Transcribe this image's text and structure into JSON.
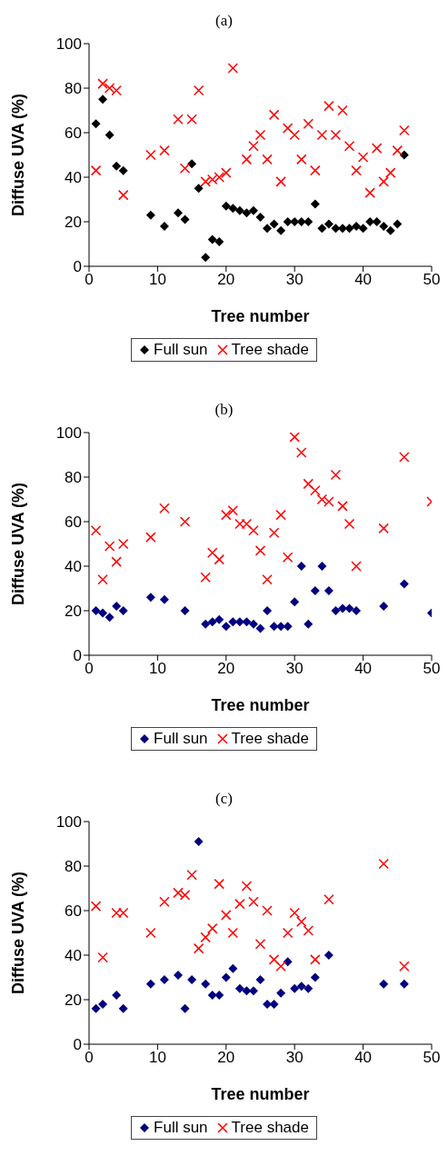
{
  "chart_data": [
    {
      "type": "scatter",
      "title": "(a)",
      "xlabel": "Tree number",
      "ylabel": "Diffuse UVA (%)",
      "xlim": [
        0,
        50
      ],
      "xticks": [
        0,
        10,
        20,
        30,
        40,
        50
      ],
      "ylim": [
        0,
        100
      ],
      "yticks": [
        0,
        20,
        40,
        60,
        80,
        100
      ],
      "grid": false,
      "legend": "bottom",
      "series": [
        {
          "name": "Full sun",
          "color": "#000000",
          "marker": "diamond",
          "x": [
            1,
            2,
            3,
            4,
            5,
            9,
            11,
            13,
            14,
            15,
            16,
            17,
            18,
            19,
            20,
            21,
            22,
            23,
            24,
            25,
            26,
            27,
            28,
            29,
            30,
            31,
            32,
            33,
            34,
            35,
            36,
            37,
            38,
            39,
            40,
            41,
            42,
            43,
            44,
            45,
            46
          ],
          "values": [
            64,
            75,
            59,
            45,
            43,
            23,
            18,
            24,
            21,
            46,
            35,
            4,
            12,
            11,
            27,
            26,
            25,
            24,
            25,
            22,
            17,
            19,
            16,
            20,
            20,
            20,
            20,
            28,
            17,
            19,
            17,
            17,
            17,
            18,
            17,
            20,
            20,
            18,
            16,
            19,
            50
          ]
        },
        {
          "name": "Tree shade",
          "color": "#ff0000",
          "marker": "cross",
          "x": [
            1,
            2,
            3,
            4,
            5,
            9,
            11,
            13,
            14,
            15,
            16,
            17,
            18,
            19,
            20,
            21,
            23,
            24,
            25,
            26,
            27,
            28,
            29,
            30,
            31,
            32,
            33,
            34,
            35,
            36,
            37,
            38,
            39,
            40,
            41,
            42,
            43,
            44,
            45,
            46
          ],
          "values": [
            43,
            82,
            80,
            79,
            32,
            50,
            52,
            66,
            44,
            66,
            79,
            38,
            39,
            40,
            42,
            89,
            48,
            54,
            59,
            48,
            68,
            38,
            62,
            59,
            48,
            64,
            43,
            59,
            72,
            59,
            70,
            54,
            43,
            49,
            33,
            53,
            38,
            42,
            52,
            61
          ]
        }
      ]
    },
    {
      "type": "scatter",
      "title": "(b)",
      "xlabel": "Tree number",
      "ylabel": "Diffuse UVA (%)",
      "xlim": [
        0,
        50
      ],
      "xticks": [
        0,
        10,
        20,
        30,
        40,
        50
      ],
      "ylim": [
        0,
        100
      ],
      "yticks": [
        0,
        20,
        40,
        60,
        80,
        100
      ],
      "grid": false,
      "legend": "bottom",
      "series": [
        {
          "name": "Full sun",
          "color": "#000080",
          "marker": "diamond",
          "x": [
            1,
            2,
            3,
            4,
            5,
            9,
            11,
            14,
            17,
            18,
            19,
            20,
            21,
            22,
            23,
            24,
            25,
            26,
            27,
            28,
            29,
            30,
            31,
            32,
            33,
            34,
            35,
            36,
            37,
            38,
            39,
            43,
            46,
            50
          ],
          "values": [
            20,
            19,
            17,
            22,
            20,
            26,
            25,
            20,
            14,
            15,
            16,
            13,
            15,
            15,
            15,
            14,
            12,
            20,
            13,
            13,
            13,
            24,
            40,
            14,
            29,
            40,
            29,
            20,
            21,
            21,
            20,
            22,
            32,
            19
          ]
        },
        {
          "name": "Tree shade",
          "color": "#ff0000",
          "marker": "cross",
          "x": [
            1,
            2,
            3,
            4,
            5,
            9,
            11,
            14,
            17,
            18,
            19,
            20,
            21,
            22,
            23,
            24,
            25,
            26,
            27,
            28,
            29,
            30,
            31,
            32,
            33,
            34,
            35,
            36,
            37,
            38,
            39,
            43,
            46,
            50
          ],
          "values": [
            56,
            34,
            49,
            42,
            50,
            53,
            66,
            60,
            35,
            46,
            43,
            63,
            65,
            59,
            59,
            56,
            47,
            34,
            55,
            63,
            44,
            98,
            91,
            77,
            74,
            70,
            69,
            81,
            67,
            59,
            40,
            57,
            89,
            69
          ]
        }
      ]
    },
    {
      "type": "scatter",
      "title": "(c)",
      "xlabel": "Tree number",
      "ylabel": "Diffuse UVA (%)",
      "xlim": [
        0,
        50
      ],
      "xticks": [
        0,
        10,
        20,
        30,
        40,
        50
      ],
      "ylim": [
        0,
        100
      ],
      "yticks": [
        0,
        20,
        40,
        60,
        80,
        100
      ],
      "grid": false,
      "legend": "bottom",
      "series": [
        {
          "name": "Full sun",
          "color": "#000080",
          "marker": "diamond",
          "x": [
            1,
            2,
            4,
            5,
            9,
            11,
            13,
            14,
            15,
            16,
            17,
            18,
            19,
            20,
            21,
            22,
            23,
            24,
            25,
            26,
            27,
            28,
            29,
            30,
            31,
            32,
            33,
            35,
            43,
            46
          ],
          "values": [
            16,
            18,
            22,
            16,
            27,
            29,
            31,
            16,
            29,
            91,
            27,
            22,
            22,
            30,
            34,
            25,
            24,
            24,
            29,
            18,
            18,
            23,
            37,
            25,
            26,
            25,
            30,
            40,
            27,
            27
          ]
        },
        {
          "name": "Tree shade",
          "color": "#ff0000",
          "marker": "cross",
          "x": [
            1,
            2,
            4,
            5,
            9,
            11,
            13,
            14,
            15,
            16,
            17,
            18,
            19,
            20,
            21,
            22,
            23,
            24,
            25,
            26,
            27,
            28,
            29,
            30,
            31,
            32,
            33,
            35,
            43,
            46
          ],
          "values": [
            62,
            39,
            59,
            59,
            50,
            64,
            68,
            67,
            76,
            43,
            48,
            52,
            72,
            58,
            50,
            63,
            71,
            64,
            45,
            60,
            38,
            35,
            50,
            59,
            55,
            51,
            38,
            65,
            81,
            35
          ]
        }
      ]
    }
  ]
}
